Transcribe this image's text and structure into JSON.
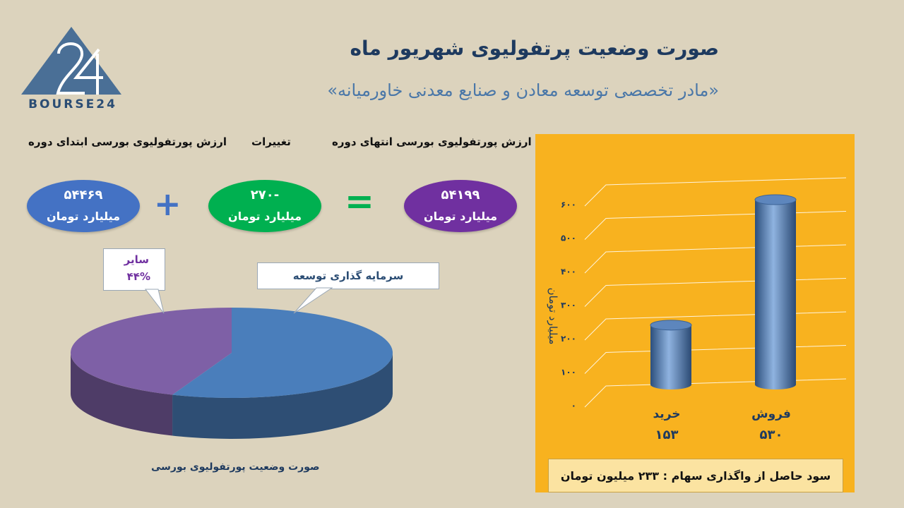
{
  "logo": {
    "text": "BOURSE24",
    "icon": "bourse24-triangle-logo",
    "color": "#4a6f96"
  },
  "header": {
    "title": "صورت وضعیت پرتفولیوی شهریور ماه",
    "subtitle": "«مادر تخصصی توسعه معادن و صنایع معدنی خاورمیانه»"
  },
  "summary": {
    "start_label": "ارزش پورتفولیوی بورسی ابتدای دوره",
    "change_label": "تغییرات",
    "end_label": "ارزش پورتفولیوی بورسی انتهای دوره",
    "start_value": "۵۴۴۶۹",
    "change_value": "-۲۷۰",
    "end_value": "۵۴۱۹۹",
    "unit": "میلیارد تومان",
    "plus": "+",
    "equals": "=",
    "colors": {
      "start": "#4472c4",
      "change": "#00b050",
      "end": "#7030a0",
      "plus": "#4472c4",
      "equals": "#00b050"
    }
  },
  "chart_data": [
    {
      "type": "pie",
      "title": "صورت وضعیت پورتفولیوی بورسی",
      "slices": [
        {
          "label": "سایر",
          "value_label": "۴۴%",
          "value": 44,
          "color": "#7e60a6"
        },
        {
          "label": "سرمایه گذاری توسعه",
          "value": 56,
          "color": "#4a7ebb"
        }
      ]
    },
    {
      "type": "bar",
      "style": "3d-cylinder",
      "categories": [
        "خرید",
        "فروش"
      ],
      "value_labels": [
        "۱۵۳",
        "۵۳۰"
      ],
      "values": [
        153,
        530
      ],
      "ylabel": "میلیارد تومان",
      "ylim": [
        0,
        600
      ],
      "yticks": [
        "۰",
        "۱۰۰",
        "۲۰۰",
        "۳۰۰",
        "۴۰۰",
        "۵۰۰",
        "۶۰۰"
      ],
      "grid": true,
      "background": "#f8b21f",
      "bar_color": "#4f81bd"
    }
  ],
  "profit": {
    "text": "سود حاصل از واگذاری سهام :  ۲۳۳ میلیون تومان"
  }
}
